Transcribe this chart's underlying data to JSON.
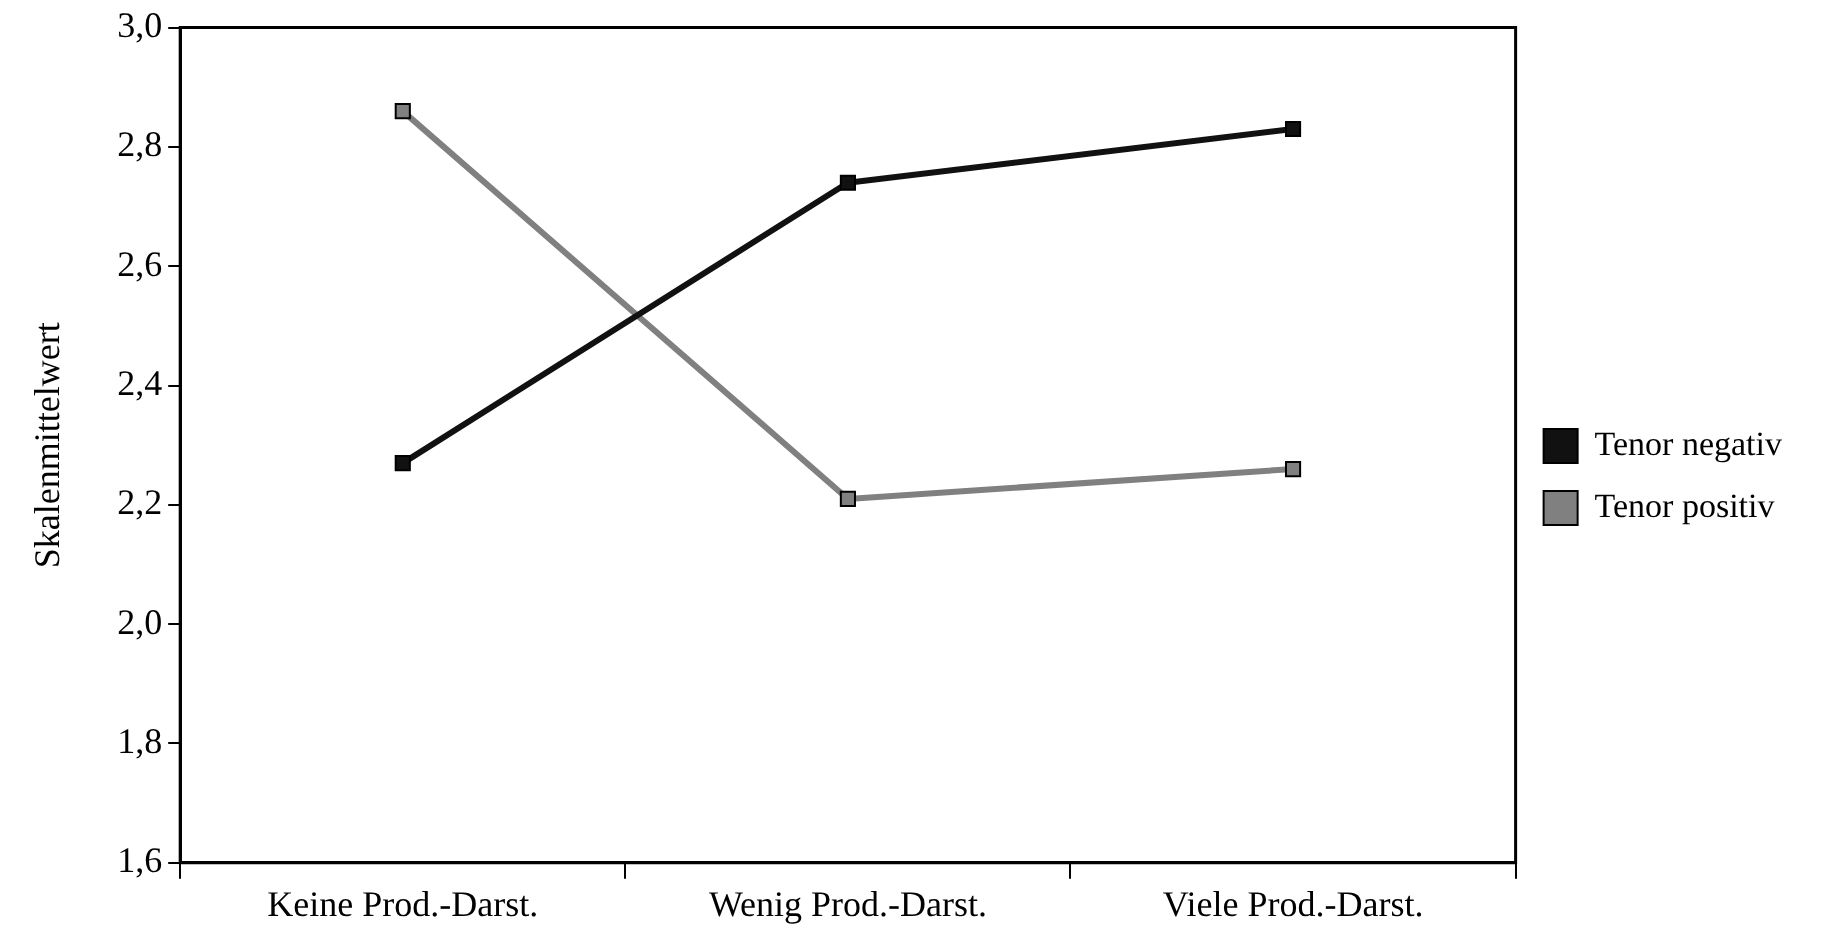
{
  "chart_data": {
    "type": "line",
    "ylabel": "Skalenmittelwert",
    "categories": [
      "Keine Prod.-Darst.",
      "Wenig Prod.-Darst.",
      "Viele Prod.-Darst."
    ],
    "series": [
      {
        "name": "Tenor negativ",
        "color": "#111111",
        "values": [
          2.27,
          2.74,
          2.83
        ]
      },
      {
        "name": "Tenor positiv",
        "color": "#808080",
        "values": [
          2.86,
          2.21,
          2.26
        ]
      }
    ],
    "ylim": [
      1.6,
      3.0
    ],
    "yticks": [
      {
        "value": 1.6,
        "label": "1,6"
      },
      {
        "value": 1.8,
        "label": "1,8"
      },
      {
        "value": 2.0,
        "label": "2,0"
      },
      {
        "value": 2.2,
        "label": "2,2"
      },
      {
        "value": 2.4,
        "label": "2,4"
      },
      {
        "value": 2.6,
        "label": "2,6"
      },
      {
        "value": 2.8,
        "label": "2,8"
      },
      {
        "value": 3.0,
        "label": "3,0"
      }
    ],
    "grid": false,
    "legend": "right",
    "marker": "square",
    "line_style": "solid"
  }
}
